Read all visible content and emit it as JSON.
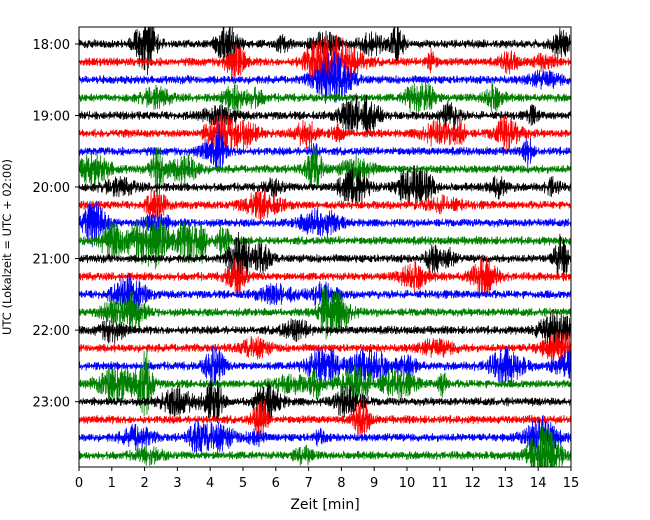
{
  "chart_data": {
    "type": "line",
    "title": "",
    "xlabel": "Zeit  [min]",
    "ylabel": "UTC (Lokalzeit = UTC + 02:00)",
    "xlim": [
      0,
      15
    ],
    "x_ticks": [
      "0",
      "1",
      "2",
      "3",
      "4",
      "5",
      "6",
      "7",
      "8",
      "9",
      "10",
      "11",
      "12",
      "13",
      "14",
      "15"
    ],
    "y_ticks": [
      {
        "label": "18:00",
        "hour": 18
      },
      {
        "label": "19:00",
        "hour": 19
      },
      {
        "label": "20:00",
        "hour": 20
      },
      {
        "label": "21:00",
        "hour": 21
      },
      {
        "label": "22:00",
        "hour": 22
      },
      {
        "label": "23:00",
        "hour": 23
      }
    ],
    "start_hour": 18,
    "traces_per_hour": 4,
    "minutes_per_trace": 15,
    "trace_count": 24,
    "trace_color_cycle": [
      "#000000",
      "#ff0000",
      "#0000ff",
      "#008000"
    ],
    "description_of_series": "Helicorder-style seismogram: each row is one 15-minute trace from 18:00 to 23:45 UTC, colors cycling black, red, blue, green."
  }
}
